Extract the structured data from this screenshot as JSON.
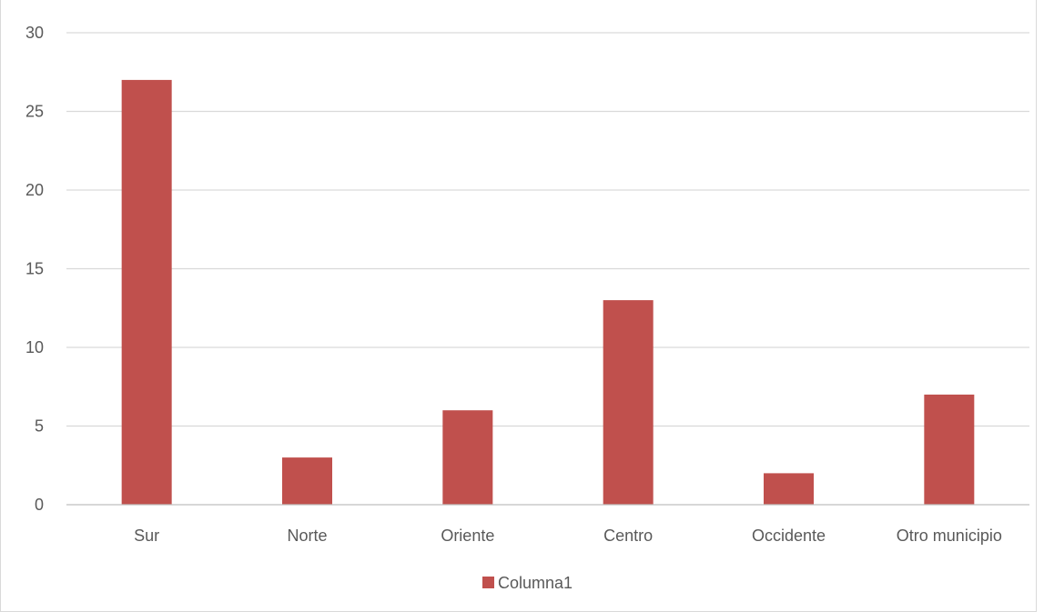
{
  "chart_data": {
    "type": "bar",
    "categories": [
      "Sur",
      "Norte",
      "Oriente",
      "Centro",
      "Occidente",
      "Otro municipio"
    ],
    "series": [
      {
        "name": "Columna1",
        "values": [
          27,
          3,
          6,
          13,
          2,
          7
        ],
        "color": "#c0504d"
      }
    ],
    "title": "",
    "xlabel": "",
    "ylabel": "",
    "ylim": [
      0,
      30
    ],
    "yticks": [
      0,
      5,
      10,
      15,
      20,
      25,
      30
    ],
    "grid": true,
    "gridColor": "#d9d9d9",
    "axisColor": "#bfbfbf",
    "legend": {
      "position": "bottom"
    }
  }
}
